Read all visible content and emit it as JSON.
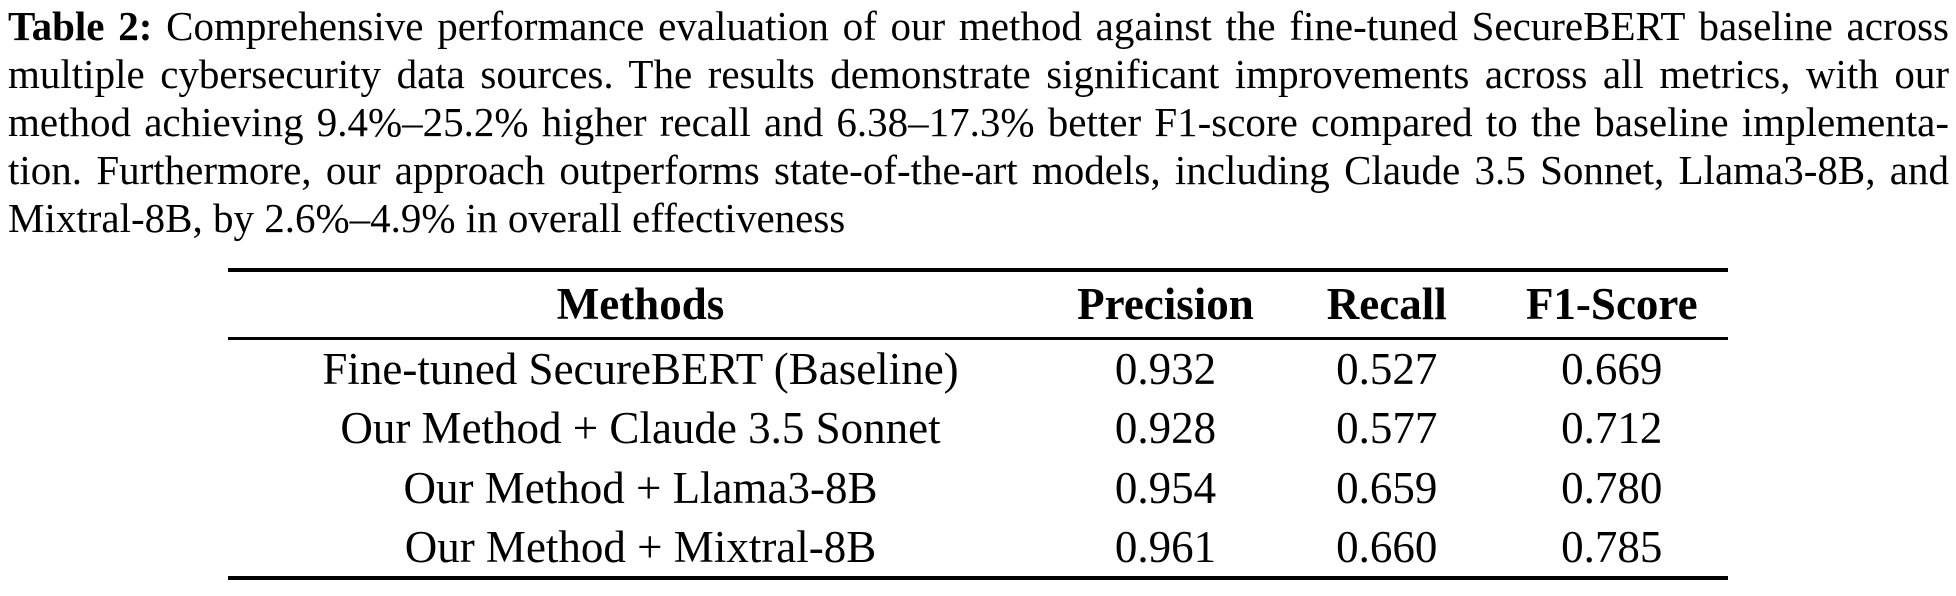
{
  "page": {
    "background": "#ffffff",
    "text_color": "#000000",
    "rule_color": "#000000"
  },
  "caption": {
    "label": "Table 2:",
    "lines": [
      "Comprehensive performance evaluation of our method against the fine-tuned SecureBERT baseline across",
      "multiple cybersecurity data sources. The results demonstrate significant improvements across all metrics, with our",
      "method achieving 9.4%–25.2% higher recall and 6.38–17.3% better F1-score compared to the baseline implementa-",
      "tion. Furthermore, our approach outperforms state-of-the-art models, including Claude 3.5 Sonnet, Llama3-8B, and",
      "Mixtral-8B, by 2.6%–4.9% in overall effectiveness"
    ]
  },
  "table": {
    "headers": [
      "Methods",
      "Precision",
      "Recall",
      "F1-Score"
    ],
    "rows": [
      {
        "method": "Fine-tuned SecureBERT (Baseline)",
        "precision": "0.932",
        "recall": "0.527",
        "f1": "0.669"
      },
      {
        "method": "Our Method + Claude 3.5 Sonnet",
        "precision": "0.928",
        "recall": "0.577",
        "f1": "0.712"
      },
      {
        "method": "Our Method + Llama3-8B",
        "precision": "0.954",
        "recall": "0.659",
        "f1": "0.780"
      },
      {
        "method": "Our Method + Mixtral-8B",
        "precision": "0.961",
        "recall": "0.660",
        "f1": "0.785"
      }
    ]
  }
}
